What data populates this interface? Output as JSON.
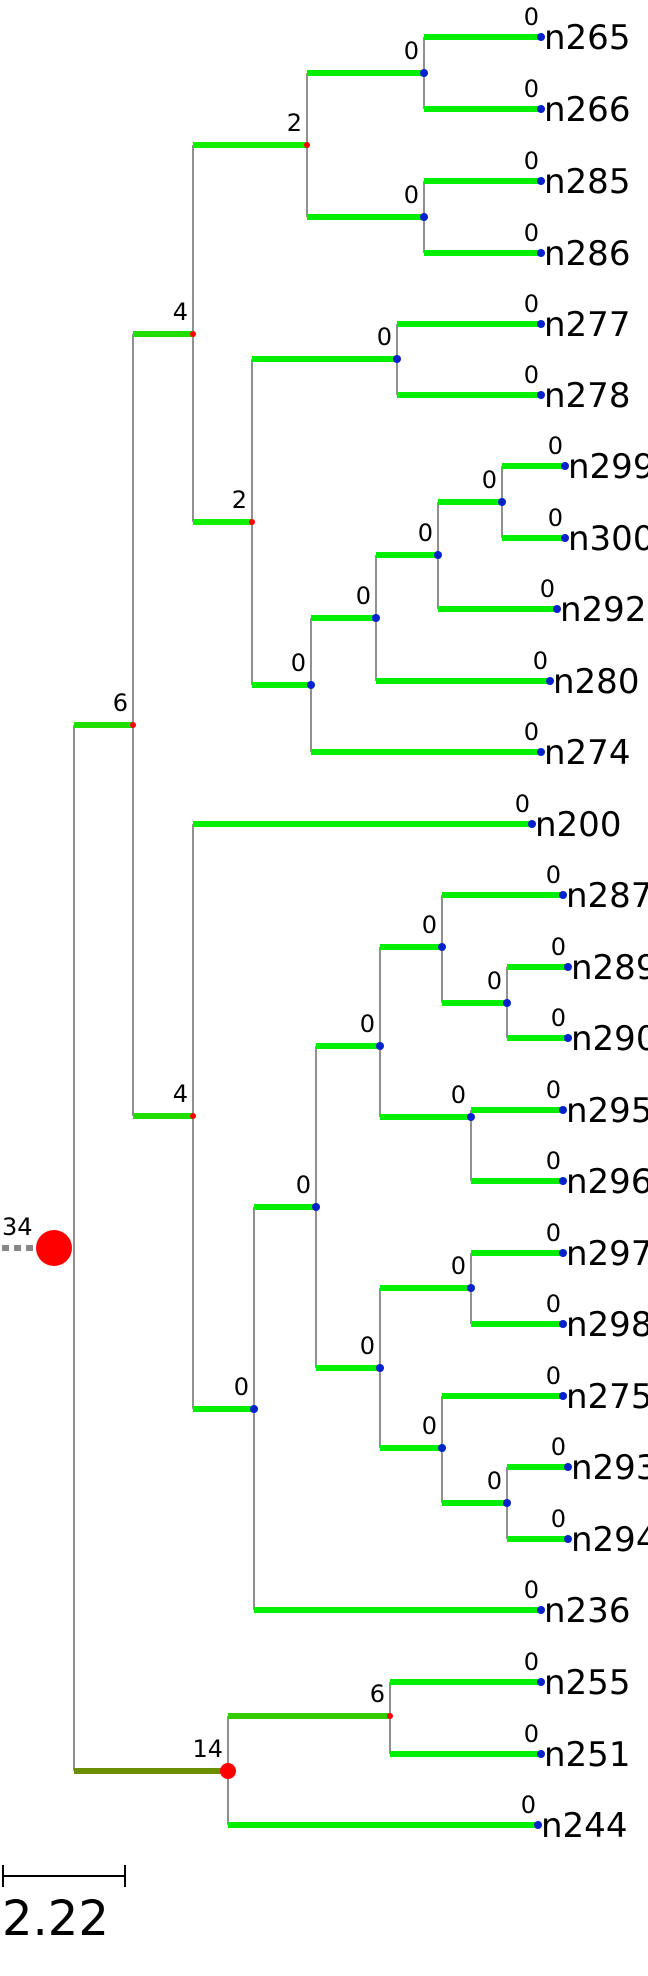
{
  "root": {
    "value": "34",
    "color": "#ff0000"
  },
  "scale_bar": {
    "label": "2.22"
  },
  "colors": {
    "leaf_branch": "#00ee00",
    "internal_node_small": "#0022cc",
    "internal_node_large": "#ff0000",
    "connector": "#555555",
    "root_stub": "#888888",
    "olive_branch": "#6b8e00"
  },
  "nodes": [
    {
      "id": "N1",
      "label": "6"
    },
    {
      "id": "N2",
      "label": "14"
    },
    {
      "id": "N3",
      "label": "4"
    },
    {
      "id": "N4",
      "label": "4"
    },
    {
      "id": "N5",
      "label": "2"
    },
    {
      "id": "N6",
      "label": "2"
    },
    {
      "id": "N7",
      "label": "0"
    },
    {
      "id": "N8",
      "label": "0"
    },
    {
      "id": "N9",
      "label": "0"
    },
    {
      "id": "N10",
      "label": "0"
    },
    {
      "id": "N11",
      "label": "0"
    },
    {
      "id": "N12",
      "label": "0"
    },
    {
      "id": "N13",
      "label": "0"
    },
    {
      "id": "N14",
      "label": "0"
    },
    {
      "id": "N15",
      "label": "0"
    },
    {
      "id": "N16",
      "label": "0"
    },
    {
      "id": "N17",
      "label": "0"
    },
    {
      "id": "N18",
      "label": "0"
    },
    {
      "id": "N19",
      "label": "0"
    },
    {
      "id": "N20",
      "label": "0"
    },
    {
      "id": "N21",
      "label": "0"
    },
    {
      "id": "N22",
      "label": "6"
    }
  ],
  "leaves": [
    {
      "name": "n265",
      "value": "0"
    },
    {
      "name": "n266",
      "value": "0"
    },
    {
      "name": "n285",
      "value": "0"
    },
    {
      "name": "n286",
      "value": "0"
    },
    {
      "name": "n277",
      "value": "0"
    },
    {
      "name": "n278",
      "value": "0"
    },
    {
      "name": "n299",
      "value": "0"
    },
    {
      "name": "n300",
      "value": "0"
    },
    {
      "name": "n292",
      "value": "0"
    },
    {
      "name": "n280",
      "value": "0"
    },
    {
      "name": "n274",
      "value": "0"
    },
    {
      "name": "n200",
      "value": "0"
    },
    {
      "name": "n287",
      "value": "0"
    },
    {
      "name": "n289",
      "value": "0"
    },
    {
      "name": "n290",
      "value": "0"
    },
    {
      "name": "n295",
      "value": "0"
    },
    {
      "name": "n296",
      "value": "0"
    },
    {
      "name": "n297",
      "value": "0"
    },
    {
      "name": "n298",
      "value": "0"
    },
    {
      "name": "n275",
      "value": "0"
    },
    {
      "name": "n293",
      "value": "0"
    },
    {
      "name": "n294",
      "value": "0"
    },
    {
      "name": "n236",
      "value": "0"
    },
    {
      "name": "n255",
      "value": "0"
    },
    {
      "name": "n251",
      "value": "0"
    },
    {
      "name": "n244",
      "value": "0"
    }
  ]
}
